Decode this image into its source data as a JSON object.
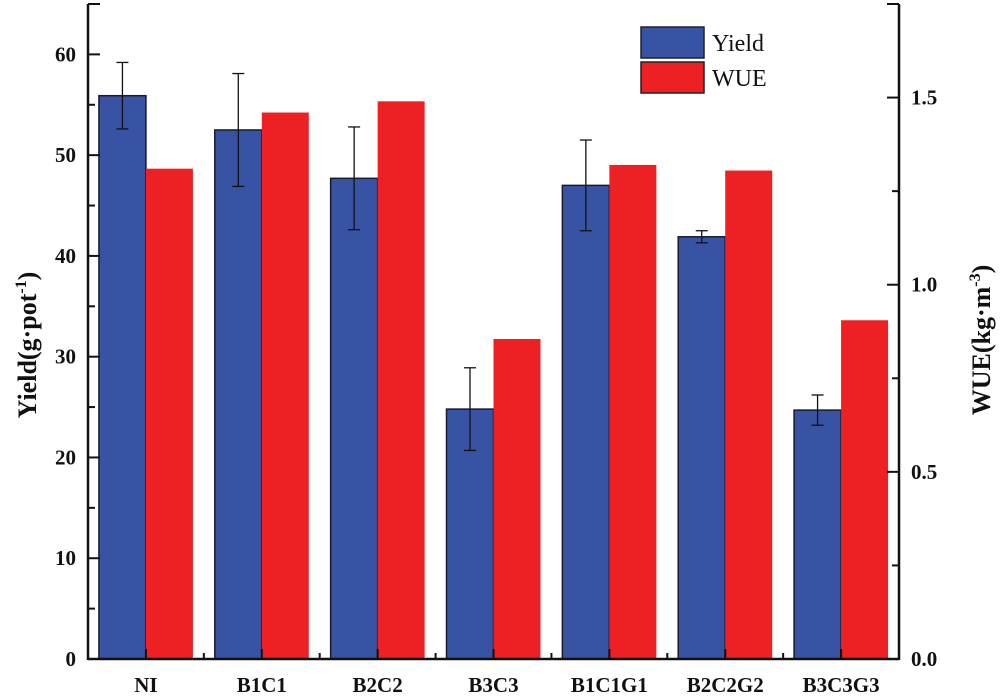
{
  "chart_data": {
    "type": "bar",
    "title": "",
    "categories": [
      "NI",
      "B1C1",
      "B2C2",
      "B3C3",
      "B1C1G1",
      "B2C2G2",
      "B3C3G3"
    ],
    "series": [
      {
        "name": "Yield",
        "axis": "left",
        "color": "#3953a4",
        "values": [
          55.9,
          52.5,
          47.7,
          24.8,
          47.0,
          41.9,
          24.7
        ],
        "error": [
          3.3,
          5.6,
          5.1,
          4.1,
          4.5,
          0.6,
          1.5
        ]
      },
      {
        "name": "WUE",
        "axis": "right",
        "color": "#ed2024",
        "values": [
          1.31,
          1.46,
          1.49,
          0.855,
          1.32,
          1.305,
          0.905
        ]
      }
    ],
    "ylabel": {
      "main": "Yield(g·pot",
      "sup": "-1",
      "close": ")"
    },
    "y2label": {
      "main": "WUE(kg·m",
      "sup": "-3",
      "close": ")"
    },
    "ylim": [
      0,
      65
    ],
    "y2lim": [
      0,
      1.75
    ],
    "yticks": [
      "0",
      "10",
      "20",
      "30",
      "40",
      "50",
      "60"
    ],
    "y2ticks": [
      "0.0",
      "0.5",
      "1.0",
      "1.5"
    ],
    "legend": {
      "placement": "top-center-right",
      "entries": [
        "Yield",
        "WUE"
      ]
    },
    "grid": false
  }
}
